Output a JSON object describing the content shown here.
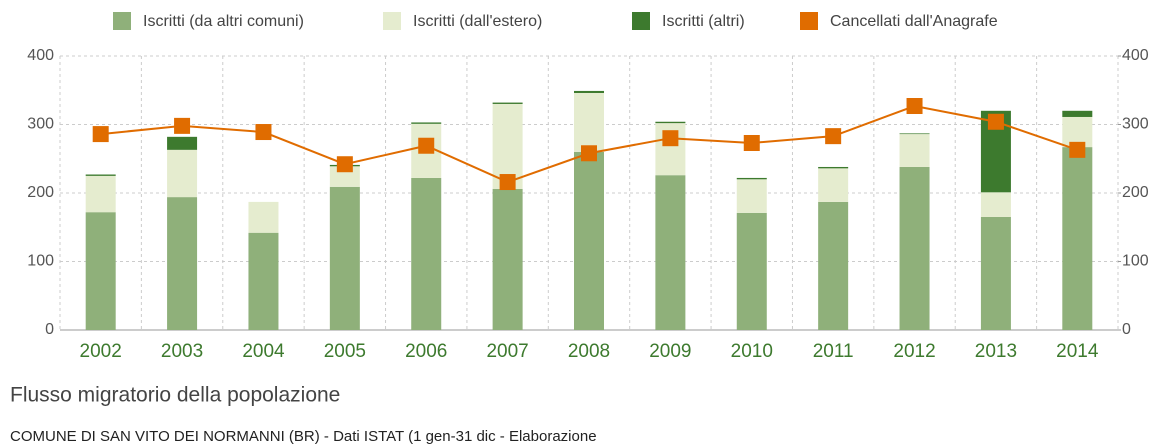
{
  "chart_data": {
    "type": "bar",
    "title": "Flusso migratorio della popolazione",
    "subtitle": "COMUNE DI SAN VITO DEI NORMANNI (BR) - Dati ISTAT (1 gen-31 dic - Elaborazione",
    "categories": [
      "2002",
      "2003",
      "2004",
      "2005",
      "2006",
      "2007",
      "2008",
      "2009",
      "2010",
      "2011",
      "2012",
      "2013",
      "2014"
    ],
    "series": [
      {
        "name": "Iscritti (da altri comuni)",
        "color": "#8fb07a",
        "stack": true,
        "values": [
          172,
          194,
          142,
          209,
          222,
          206,
          260,
          226,
          171,
          187,
          238,
          165,
          267
        ]
      },
      {
        "name": "Iscritti (dall'estero)",
        "color": "#e5eccf",
        "stack": true,
        "values": [
          53,
          69,
          45,
          30,
          79,
          124,
          86,
          76,
          49,
          49,
          48,
          36,
          44
        ]
      },
      {
        "name": "Iscritti (altri)",
        "color": "#3d7a2e",
        "stack": true,
        "values": [
          2,
          19,
          0,
          2,
          2,
          2,
          3,
          2,
          2,
          2,
          1,
          119,
          9
        ]
      },
      {
        "name": "Cancellati dall'Anagrafe",
        "color": "#e06c00",
        "line": true,
        "values": [
          286,
          298,
          289,
          242,
          269,
          216,
          258,
          280,
          273,
          283,
          327,
          304,
          263
        ]
      }
    ],
    "ylim": [
      0,
      400
    ],
    "yticks": [
      0,
      100,
      200,
      300,
      400
    ],
    "y2lim": [
      0,
      400
    ],
    "y2ticks": [
      0,
      100,
      200,
      300,
      400
    ],
    "grid": true,
    "legend": "top"
  }
}
